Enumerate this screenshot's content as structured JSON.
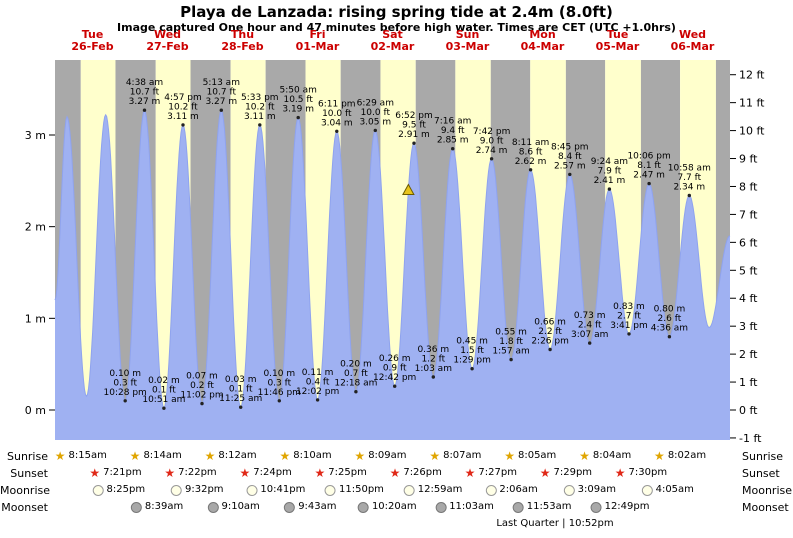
{
  "header": {
    "title": "Playa de Lanzada: rising  spring tide at 2.4m (8.0ft)",
    "subtitle": "Image captured One hour and 47 minutes before high water. Times are CET (UTC +1.0hrs)"
  },
  "chart_data": {
    "type": "area",
    "title": "Playa de Lanzada tide curve",
    "unit_left": "m",
    "unit_right": "ft",
    "left_ticks_m": [
      0,
      1,
      2,
      3
    ],
    "right_ticks_ft": [
      12,
      11,
      10,
      9,
      8,
      7,
      6,
      5,
      4,
      3,
      2,
      1,
      0,
      -1
    ],
    "ylim_m": [
      -0.33,
      3.82
    ],
    "days": [
      {
        "weekday": "Tue",
        "date": "26-Feb"
      },
      {
        "weekday": "Wed",
        "date": "27-Feb"
      },
      {
        "weekday": "Thu",
        "date": "28-Feb"
      },
      {
        "weekday": "Fri",
        "date": "01-Mar"
      },
      {
        "weekday": "Sat",
        "date": "02-Mar"
      },
      {
        "weekday": "Sun",
        "date": "03-Mar"
      },
      {
        "weekday": "Mon",
        "date": "04-Mar"
      },
      {
        "weekday": "Tue",
        "date": "05-Mar"
      },
      {
        "weekday": "Wed",
        "date": "06-Mar"
      }
    ],
    "tide_events": [
      {
        "day": 0,
        "kind": "edge",
        "hour": 0.0,
        "est_m": 1.2,
        "labeled": false
      },
      {
        "day": 0,
        "kind": "high",
        "hour": 3.83,
        "est_m": 3.2,
        "labeled": false
      },
      {
        "day": 0,
        "kind": "low",
        "hour": 10.08,
        "est_m": 0.15,
        "labeled": false
      },
      {
        "day": 0,
        "kind": "high",
        "hour": 16.22,
        "est_m": 3.22,
        "labeled": false
      },
      {
        "day": 0,
        "kind": "low",
        "time": "10:28 pm",
        "m": "0.10 m",
        "ft": "0.3 ft",
        "labeled": true
      },
      {
        "day": 1,
        "kind": "high",
        "time": "4:38 am",
        "ft": "10.7 ft",
        "m": "3.27 m",
        "labeled": true
      },
      {
        "day": 1,
        "kind": "low",
        "time": "10:51 am",
        "m": "0.02 m",
        "ft": "0.1 ft",
        "labeled": true
      },
      {
        "day": 1,
        "kind": "high",
        "time": "4:57 pm",
        "ft": "10.2 ft",
        "m": "3.11 m",
        "labeled": true
      },
      {
        "day": 1,
        "kind": "low",
        "time": "11:02 pm",
        "m": "0.07 m",
        "ft": "0.2 ft",
        "labeled": true
      },
      {
        "day": 2,
        "kind": "high",
        "time": "5:13 am",
        "ft": "10.7 ft",
        "m": "3.27 m",
        "labeled": true
      },
      {
        "day": 2,
        "kind": "low",
        "time": "11:25 am",
        "m": "0.03 m",
        "ft": "0.1 ft",
        "labeled": true
      },
      {
        "day": 2,
        "kind": "high",
        "time": "5:33 pm",
        "ft": "10.2 ft",
        "m": "3.11 m",
        "labeled": true
      },
      {
        "day": 2,
        "kind": "low",
        "time": "11:46 pm",
        "m": "0.10 m",
        "ft": "0.3 ft",
        "labeled": true
      },
      {
        "day": 3,
        "kind": "high",
        "time": "5:50 am",
        "ft": "10.5 ft",
        "m": "3.19 m",
        "labeled": true
      },
      {
        "day": 3,
        "kind": "low",
        "time": "12:02 pm",
        "m": "0.11 m",
        "ft": "0.4 ft",
        "labeled": true
      },
      {
        "day": 3,
        "kind": "high",
        "time": "6:11 pm",
        "ft": "10.0 ft",
        "m": "3.04 m",
        "labeled": true
      },
      {
        "day": 4,
        "kind": "low",
        "time": "12:18 am",
        "m": "0.20 m",
        "ft": "0.7 ft",
        "labeled": true
      },
      {
        "day": 4,
        "kind": "high",
        "time": "6:29 am",
        "ft": "10.0 ft",
        "m": "3.05 m",
        "labeled": true
      },
      {
        "day": 4,
        "kind": "low",
        "time": "12:42 pm",
        "m": "0.26 m",
        "ft": "0.9 ft",
        "labeled": true
      },
      {
        "day": 4,
        "kind": "high",
        "time": "6:52 pm",
        "ft": "9.5 ft",
        "m": "2.91 m",
        "labeled": true
      },
      {
        "day": 5,
        "kind": "low",
        "time": "1:03 am",
        "m": "0.36 m",
        "ft": "1.2 ft",
        "labeled": true
      },
      {
        "day": 5,
        "kind": "high",
        "time": "7:16 am",
        "ft": "9.4 ft",
        "m": "2.85 m",
        "labeled": true
      },
      {
        "day": 5,
        "kind": "low",
        "time": "1:29 pm",
        "m": "0.45 m",
        "ft": "1.5 ft",
        "labeled": true
      },
      {
        "day": 5,
        "kind": "high",
        "time": "7:42 pm",
        "ft": "9.0 ft",
        "m": "2.74 m",
        "labeled": true
      },
      {
        "day": 6,
        "kind": "low",
        "time": "1:57 am",
        "m": "0.55 m",
        "ft": "1.8 ft",
        "labeled": true
      },
      {
        "day": 6,
        "kind": "high",
        "time": "8:11 am",
        "ft": "8.6 ft",
        "m": "2.62 m",
        "labeled": true
      },
      {
        "day": 6,
        "kind": "low",
        "time": "2:26 pm",
        "m": "0.66 m",
        "ft": "2.2 ft",
        "labeled": true
      },
      {
        "day": 6,
        "kind": "high",
        "time": "8:45 pm",
        "ft": "8.4 ft",
        "m": "2.57 m",
        "labeled": true
      },
      {
        "day": 7,
        "kind": "low",
        "time": "3:07 am",
        "m": "0.73 m",
        "ft": "2.4 ft",
        "labeled": true
      },
      {
        "day": 7,
        "kind": "high",
        "time": "9:24 am",
        "ft": "7.9 ft",
        "m": "2.41 m",
        "labeled": true
      },
      {
        "day": 7,
        "kind": "low",
        "time": "3:41 pm",
        "m": "0.83 m",
        "ft": "2.7 ft",
        "labeled": true
      },
      {
        "day": 7,
        "kind": "high",
        "time": "10:06 pm",
        "ft": "8.1 ft",
        "m": "2.47 m",
        "labeled": true
      },
      {
        "day": 8,
        "kind": "low",
        "time": "4:36 am",
        "m": "0.80 m",
        "ft": "2.6 ft",
        "labeled": true
      },
      {
        "day": 8,
        "kind": "high",
        "time": "10:58 am",
        "ft": "7.7 ft",
        "m": "2.34 m",
        "labeled": true
      },
      {
        "day": 8,
        "kind": "low",
        "hour": 17.3,
        "est_m": 0.9,
        "labeled": false
      },
      {
        "day": 8,
        "kind": "edge",
        "hour": 24.0,
        "est_m": 1.9,
        "labeled": false
      }
    ],
    "current_marker": {
      "day": 4,
      "hour": 17.08,
      "m": 2.4
    },
    "colors": {
      "day_band": "#ffffcc",
      "night_band": "#a9a9a9",
      "tide_fill": "#9fb1f2",
      "tide_line": "#8fa3ee",
      "label_red": "#cc0000",
      "marker_fill": "#e8c41c",
      "marker_stroke": "#6b5b00"
    }
  },
  "astro": {
    "rows": [
      {
        "id": "sunrise",
        "label": "Sunrise",
        "icon": "sunrise-star-icon",
        "entries": [
          {
            "day": 0,
            "time": "8:15am"
          },
          {
            "day": 1,
            "time": "8:14am"
          },
          {
            "day": 2,
            "time": "8:12am"
          },
          {
            "day": 3,
            "time": "8:10am"
          },
          {
            "day": 4,
            "time": "8:09am"
          },
          {
            "day": 5,
            "time": "8:07am"
          },
          {
            "day": 6,
            "time": "8:05am"
          },
          {
            "day": 7,
            "time": "8:04am"
          },
          {
            "day": 8,
            "time": "8:02am"
          }
        ]
      },
      {
        "id": "sunset",
        "label": "Sunset",
        "icon": "sunset-star-icon",
        "entries": [
          {
            "day": 0,
            "time": "7:21pm"
          },
          {
            "day": 1,
            "time": "7:22pm"
          },
          {
            "day": 2,
            "time": "7:24pm"
          },
          {
            "day": 3,
            "time": "7:25pm"
          },
          {
            "day": 4,
            "time": "7:26pm"
          },
          {
            "day": 5,
            "time": "7:27pm"
          },
          {
            "day": 6,
            "time": "7:29pm"
          },
          {
            "day": 7,
            "time": "7:30pm"
          }
        ]
      },
      {
        "id": "moonrise",
        "label": "Moonrise",
        "icon": "moonrise-circle-icon",
        "entries": [
          {
            "day": 0,
            "time": "8:25pm"
          },
          {
            "day": 1,
            "time": "9:32pm"
          },
          {
            "day": 2,
            "time": "10:41pm"
          },
          {
            "day": 3,
            "time": "11:50pm"
          },
          {
            "day": 5,
            "time": "12:59am"
          },
          {
            "day": 6,
            "time": "2:06am"
          },
          {
            "day": 7,
            "time": "3:09am"
          },
          {
            "day": 8,
            "time": "4:05am"
          }
        ]
      },
      {
        "id": "moonset",
        "label": "Moonset",
        "icon": "moonset-circle-icon",
        "entries": [
          {
            "day": 1,
            "time": "8:39am"
          },
          {
            "day": 2,
            "time": "9:10am"
          },
          {
            "day": 3,
            "time": "9:43am"
          },
          {
            "day": 4,
            "time": "10:20am"
          },
          {
            "day": 5,
            "time": "11:03am"
          },
          {
            "day": 6,
            "time": "11:53am"
          },
          {
            "day": 7,
            "time": "12:49pm"
          }
        ]
      }
    ],
    "footer": "Last Quarter | 10:52pm"
  }
}
